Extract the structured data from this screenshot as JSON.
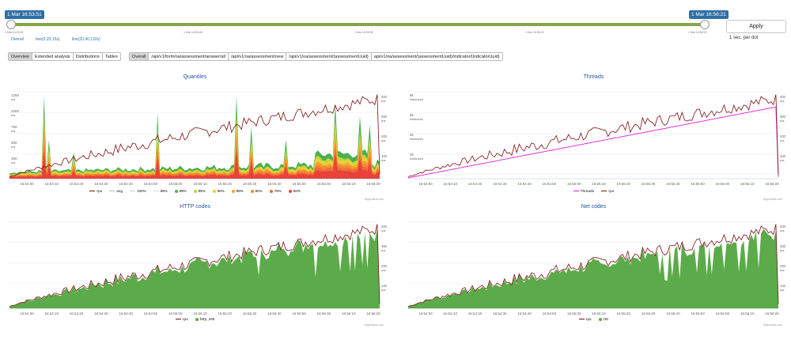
{
  "range": {
    "start_tag": "1 Mar 16:53:51",
    "end_tag": "1 Mar 16:56:21",
    "tick_labels": [
      "1 Mar 16:53:51",
      "1 Mar 16:54:28",
      "1 Mar 16:55:06",
      "1 Mar 16:55:43",
      "1 Mar 16:56:21"
    ],
    "apply_label": "Apply",
    "per_dot": "1 sec. per dot",
    "links": [
      "Overall",
      "line(0,20,15s)",
      "line(20,40,132s)"
    ]
  },
  "tabs": [
    "Overview",
    "Extended analysis",
    "Distributions",
    "Tables"
  ],
  "active_tab": "Overview",
  "endpoints": [
    "Overall",
    "/api/v1/form/oa/assessment/answer/all",
    "/api/v1/oa/assessment/new",
    "/api/v1/oa/assessment/{assessmentUuid}",
    "api/v1/oa/assessment/{assessmentUuid}/indicator/{indicatorUuid}"
  ],
  "active_endpoint": "Overall",
  "x_ticks": [
    "16:54:00",
    "16:54:10",
    "16:54:20",
    "16:54:30",
    "16:54:40",
    "16:54:50",
    "16:55:00",
    "16:55:10",
    "16:55:20",
    "16:55:30",
    "16:55:40",
    "16:55:50",
    "16:56:00",
    "16:56:10",
    "16:56:20"
  ],
  "credit": "Highcharts.com",
  "colors": {
    "rps": "#7b1012",
    "ok": "#5cab4a",
    "threads": "#e020e0",
    "q98": "#4caf50",
    "q95": "#c0d63a",
    "q90": "#ecd13a",
    "q85": "#f2a43a",
    "q80": "#f08a2c",
    "q75": "#ee6a3a",
    "q50": "#e8423a",
    "avg": "#bbbbbb",
    "q100": "#cccccc",
    "q99": "#dddddd"
  },
  "charts": {
    "quantiles": {
      "title": "Quantiles",
      "y_left": [
        "1250",
        "1000",
        "750",
        "500",
        "250"
      ],
      "y_left_unit": "ms",
      "y_right": [
        "400",
        "300",
        "200",
        "100"
      ],
      "y_right_unit": "rps",
      "legend": [
        "rps",
        "avg",
        "100%",
        "99%",
        "98%",
        "95%",
        "90%",
        "85%",
        "80%",
        "75%",
        "50%"
      ]
    },
    "threads": {
      "title": "Threads",
      "y_left": [
        "8k",
        "6k",
        "4k",
        "2k"
      ],
      "y_left_unit": "instances",
      "y_right": [
        "400",
        "300",
        "200",
        "100"
      ],
      "y_right_unit": "rps",
      "legend": [
        "Threads",
        "rps"
      ]
    },
    "http": {
      "title": "HTTP codes",
      "y_right": [
        "400",
        "300",
        "200",
        "100"
      ],
      "y_right_unit": "rps",
      "legend": [
        "rps",
        "http_200"
      ]
    },
    "net": {
      "title": "Net codes",
      "y_right": [
        "400",
        "300",
        "200",
        "100"
      ],
      "y_right_unit": "rps",
      "legend": [
        "rps",
        "OK"
      ]
    }
  }
}
